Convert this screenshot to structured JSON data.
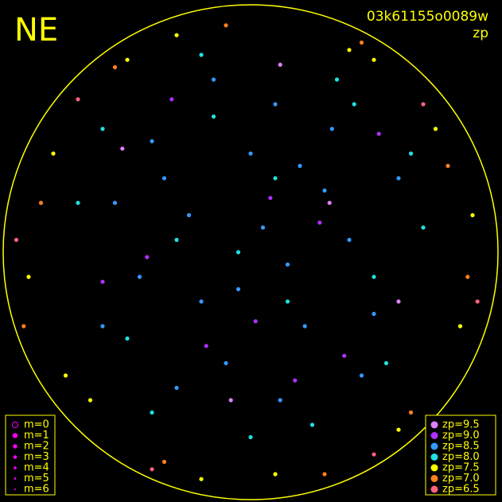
{
  "chart_data": {
    "type": "scatter",
    "title": "NE",
    "subtitle": "03k61155o0089w",
    "label": "zp",
    "xlim": [
      -1,
      1
    ],
    "ylim": [
      -1,
      1
    ],
    "size_legend": [
      "m=0",
      "m=1",
      "m=2",
      "m=3",
      "m=4",
      "m=5",
      "m=6"
    ],
    "series": [
      {
        "name": "zp=9.5",
        "color": "#e080ff",
        "x": [
          -0.08,
          0.32,
          -0.52,
          0.12,
          0.6
        ],
        "y": [
          -0.6,
          0.2,
          0.42,
          0.76,
          -0.2
        ]
      },
      {
        "name": "zp=9.0",
        "color": "#b030ff",
        "x": [
          -0.18,
          0.28,
          -0.42,
          0.08,
          0.38,
          -0.6,
          0.02,
          0.52,
          -0.32,
          0.18
        ],
        "y": [
          -0.38,
          0.12,
          -0.02,
          0.22,
          -0.42,
          -0.12,
          -0.28,
          0.48,
          0.62,
          -0.52
        ]
      },
      {
        "name": "zp=8.5",
        "color": "#3399ff",
        "x": [
          0.05,
          -0.2,
          0.15,
          -0.35,
          0.3,
          -0.1,
          0.22,
          -0.45,
          0.4,
          0.0,
          -0.25,
          0.1,
          -0.55,
          0.5,
          0.12,
          -0.3,
          0.33,
          -0.05,
          0.2,
          -0.4,
          0.45,
          -0.15,
          0.6,
          -0.6
        ],
        "y": [
          0.1,
          -0.2,
          -0.05,
          0.3,
          0.25,
          -0.45,
          -0.3,
          -0.1,
          0.05,
          0.4,
          0.15,
          0.6,
          0.2,
          -0.25,
          -0.6,
          -0.55,
          0.5,
          -0.15,
          0.35,
          0.45,
          -0.5,
          0.7,
          0.3,
          -0.3
        ]
      },
      {
        "name": "zp=8.0",
        "color": "#20e0e0",
        "x": [
          0.1,
          -0.3,
          0.5,
          -0.5,
          0.25,
          -0.15,
          0.65,
          -0.7,
          0.35,
          0.0,
          -0.4,
          0.15,
          0.55,
          -0.6,
          0.7,
          -0.2,
          0.42,
          -0.05
        ],
        "y": [
          0.3,
          0.05,
          -0.1,
          -0.35,
          -0.7,
          0.55,
          0.4,
          0.2,
          0.7,
          -0.75,
          -0.65,
          -0.2,
          -0.45,
          0.5,
          0.1,
          0.8,
          0.6,
          0.0
        ]
      },
      {
        "name": "zp=7.5",
        "color": "#ffff00",
        "x": [
          -0.8,
          0.75,
          -0.65,
          0.85,
          -0.3,
          0.4,
          -0.9,
          0.6,
          0.1,
          -0.5,
          0.9,
          -0.75,
          0.5,
          -0.2
        ],
        "y": [
          0.4,
          0.5,
          -0.6,
          -0.3,
          0.88,
          0.82,
          -0.1,
          -0.72,
          -0.9,
          0.78,
          0.15,
          -0.5,
          0.78,
          -0.92
        ]
      },
      {
        "name": "zp=7.0",
        "color": "#ff8020",
        "x": [
          -0.85,
          0.8,
          -0.55,
          0.65,
          -0.1,
          0.3,
          -0.92,
          0.88,
          -0.35,
          0.45
        ],
        "y": [
          0.2,
          0.35,
          0.75,
          -0.65,
          0.92,
          -0.9,
          -0.3,
          -0.1,
          -0.85,
          0.85
        ]
      },
      {
        "name": "zp=6.5",
        "color": "#ff6080",
        "x": [
          -0.7,
          0.7,
          -0.4,
          0.5,
          -0.95,
          0.92
        ],
        "y": [
          0.62,
          0.6,
          -0.88,
          -0.82,
          0.05,
          -0.2
        ]
      }
    ]
  }
}
